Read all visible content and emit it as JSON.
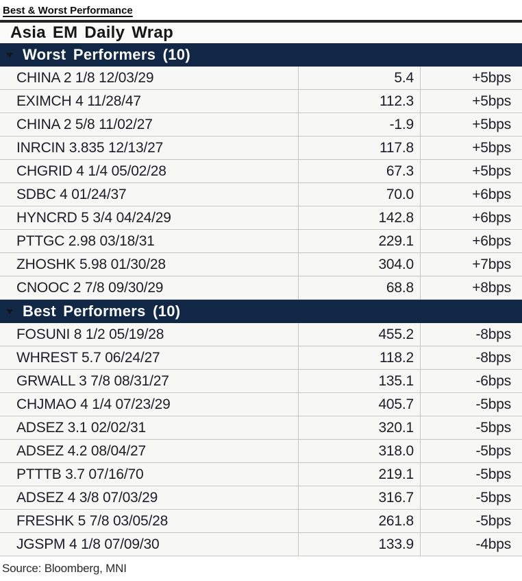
{
  "report": {
    "title": "Best & Worst Performance",
    "source": "Source: Bloomberg, MNI"
  },
  "table": {
    "title": "Asia EM Daily Wrap",
    "sections": [
      {
        "label": "Worst Performers (10)",
        "collapse_icon": "triangle-down-icon",
        "rows": [
          {
            "security": "CHINA 2 1/8 12/03/29",
            "spread": "5.4",
            "change": "+5bps"
          },
          {
            "security": "EXIMCH 4 11/28/47",
            "spread": "112.3",
            "change": "+5bps"
          },
          {
            "security": "CHINA 2 5/8 11/02/27",
            "spread": "-1.9",
            "change": "+5bps"
          },
          {
            "security": "INRCIN 3.835 12/13/27",
            "spread": "117.8",
            "change": "+5bps"
          },
          {
            "security": "CHGRID 4 1/4 05/02/28",
            "spread": "67.3",
            "change": "+5bps"
          },
          {
            "security": "SDBC 4 01/24/37",
            "spread": "70.0",
            "change": "+6bps"
          },
          {
            "security": "HYNCRD 5 3/4 04/24/29",
            "spread": "142.8",
            "change": "+6bps"
          },
          {
            "security": "PTTGC 2.98 03/18/31",
            "spread": "229.1",
            "change": "+6bps"
          },
          {
            "security": "ZHOSHK 5.98 01/30/28",
            "spread": "304.0",
            "change": "+7bps"
          },
          {
            "security": "CNOOC 2 7/8 09/30/29",
            "spread": "68.8",
            "change": "+8bps"
          }
        ]
      },
      {
        "label": "Best Performers (10)",
        "collapse_icon": "triangle-down-icon",
        "rows": [
          {
            "security": "FOSUNI 8 1/2 05/19/28",
            "spread": "455.2",
            "change": "-8bps"
          },
          {
            "security": "WHREST 5.7 06/24/27",
            "spread": "118.2",
            "change": "-8bps"
          },
          {
            "security": "GRWALL 3 7/8 08/31/27",
            "spread": "135.1",
            "change": "-6bps"
          },
          {
            "security": "CHJMAO 4 1/4 07/23/29",
            "spread": "405.7",
            "change": "-5bps"
          },
          {
            "security": "ADSEZ 3.1 02/02/31",
            "spread": "320.1",
            "change": "-5bps"
          },
          {
            "security": "ADSEZ 4.2 08/04/27",
            "spread": "318.0",
            "change": "-5bps"
          },
          {
            "security": "PTTTB 3.7 07/16/70",
            "spread": "219.1",
            "change": "-5bps"
          },
          {
            "security": "ADSEZ 4 3/8 07/03/29",
            "spread": "316.7",
            "change": "-5bps"
          },
          {
            "security": "FRESHK 5 7/8 03/05/28",
            "spread": "261.8",
            "change": "-5bps"
          },
          {
            "security": "JGSPM 4 1/8 07/09/30",
            "spread": "133.9",
            "change": "-4bps"
          }
        ]
      }
    ]
  },
  "colors": {
    "section_header_bg": "#102846",
    "section_header_text": "#fbfbfb",
    "row_bg": "#f7f7f5",
    "row_border": "#c6c6c6",
    "top_rule": "#242424",
    "row_text": "#1d1d28"
  }
}
